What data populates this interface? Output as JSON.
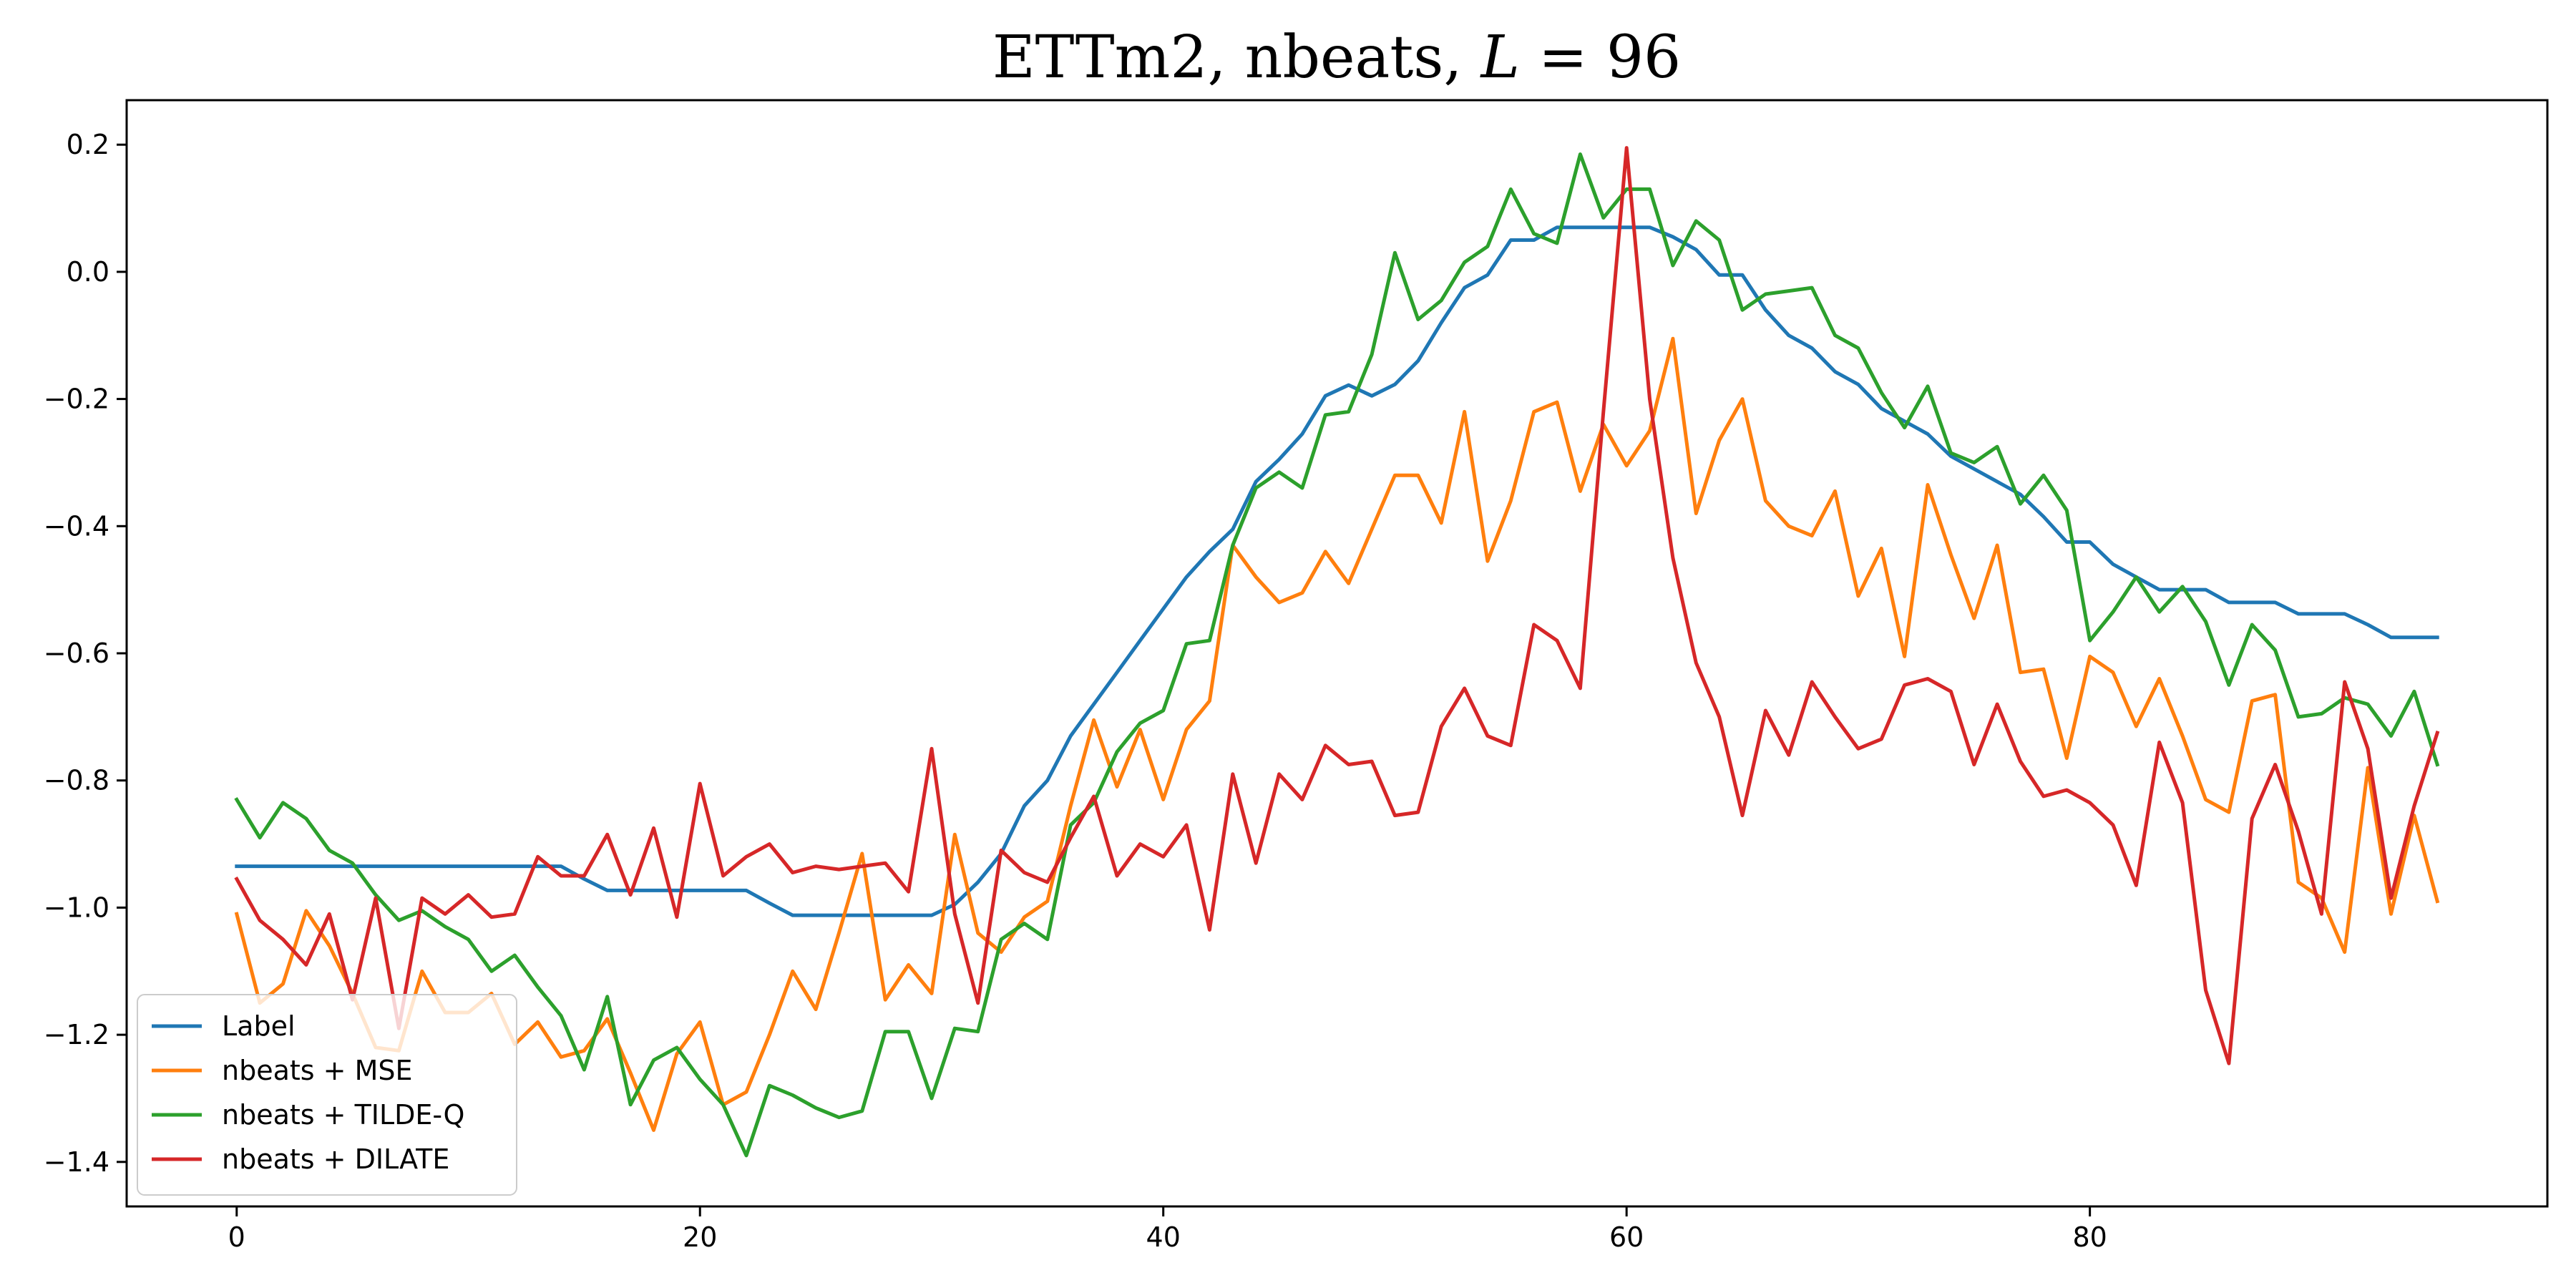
{
  "chart_data": {
    "type": "line",
    "title": "ETTm2, nbeats, L = 96",
    "title_parts": {
      "prefix": "ETTm2, nbeats, ",
      "var": "L",
      "suffix": " = 96"
    },
    "xlabel": "",
    "ylabel": "",
    "xlim": [
      -4.75,
      99.75
    ],
    "ylim": [
      -1.47,
      0.27
    ],
    "xticks": [
      0,
      20,
      40,
      60,
      80
    ],
    "xtick_labels": [
      "0",
      "20",
      "40",
      "60",
      "80"
    ],
    "yticks": [
      -1.4,
      -1.2,
      -1.0,
      -0.8,
      -0.6,
      -0.4,
      -0.2,
      0.0,
      0.2
    ],
    "ytick_labels": [
      "−1.4",
      "−1.2",
      "−1.0",
      "−0.8",
      "−0.6",
      "−0.4",
      "−0.2",
      "0.0",
      "0.2"
    ],
    "grid": false,
    "legend_position": "lower-left",
    "x_start": 0,
    "series": [
      {
        "name": "Label",
        "color": "#1f77b4",
        "values": [
          -0.935,
          -0.935,
          -0.935,
          -0.935,
          -0.935,
          -0.935,
          -0.935,
          -0.935,
          -0.935,
          -0.935,
          -0.935,
          -0.935,
          -0.935,
          -0.935,
          -0.935,
          -0.955,
          -0.973,
          -0.973,
          -0.973,
          -0.973,
          -0.973,
          -0.973,
          -0.973,
          -0.993,
          -1.012,
          -1.012,
          -1.012,
          -1.012,
          -1.012,
          -1.012,
          -1.012,
          -0.995,
          -0.96,
          -0.915,
          -0.84,
          -0.8,
          -0.73,
          -0.68,
          -0.63,
          -0.58,
          -0.53,
          -0.48,
          -0.44,
          -0.405,
          -0.33,
          -0.295,
          -0.255,
          -0.195,
          -0.178,
          -0.195,
          -0.177,
          -0.14,
          -0.08,
          -0.025,
          -0.005,
          0.05,
          0.05,
          0.07,
          0.07,
          0.07,
          0.07,
          0.07,
          0.055,
          0.035,
          -0.005,
          -0.005,
          -0.06,
          -0.1,
          -0.12,
          -0.157,
          -0.177,
          -0.215,
          -0.235,
          -0.255,
          -0.29,
          -0.31,
          -0.33,
          -0.35,
          -0.385,
          -0.425,
          -0.425,
          -0.46,
          -0.48,
          -0.5,
          -0.5,
          -0.5,
          -0.52,
          -0.52,
          -0.52,
          -0.538,
          -0.538,
          -0.538,
          -0.555,
          -0.575,
          -0.575,
          -0.575
        ]
      },
      {
        "name": "nbeats + MSE",
        "color": "#ff7f0e",
        "values": [
          -1.01,
          -1.15,
          -1.12,
          -1.005,
          -1.06,
          -1.135,
          -1.22,
          -1.225,
          -1.1,
          -1.165,
          -1.165,
          -1.135,
          -1.215,
          -1.18,
          -1.235,
          -1.225,
          -1.175,
          -1.26,
          -1.35,
          -1.23,
          -1.18,
          -1.31,
          -1.29,
          -1.2,
          -1.1,
          -1.16,
          -1.04,
          -0.915,
          -1.145,
          -1.09,
          -1.135,
          -0.885,
          -1.04,
          -1.07,
          -1.015,
          -0.99,
          -0.84,
          -0.705,
          -0.81,
          -0.72,
          -0.83,
          -0.72,
          -0.675,
          -0.43,
          -0.48,
          -0.52,
          -0.505,
          -0.44,
          -0.49,
          -0.405,
          -0.32,
          -0.32,
          -0.395,
          -0.22,
          -0.455,
          -0.36,
          -0.22,
          -0.205,
          -0.345,
          -0.24,
          -0.305,
          -0.25,
          -0.105,
          -0.38,
          -0.265,
          -0.2,
          -0.36,
          -0.4,
          -0.415,
          -0.345,
          -0.51,
          -0.435,
          -0.605,
          -0.335,
          -0.445,
          -0.545,
          -0.43,
          -0.63,
          -0.625,
          -0.765,
          -0.605,
          -0.63,
          -0.715,
          -0.64,
          -0.73,
          -0.83,
          -0.85,
          -0.675,
          -0.665,
          -0.96,
          -0.985,
          -1.07,
          -0.78,
          -1.01,
          -0.855,
          -0.99
        ]
      },
      {
        "name": "nbeats + TILDE-Q",
        "color": "#2ca02c",
        "values": [
          -0.83,
          -0.89,
          -0.835,
          -0.86,
          -0.91,
          -0.93,
          -0.98,
          -1.02,
          -1.005,
          -1.03,
          -1.05,
          -1.1,
          -1.075,
          -1.125,
          -1.17,
          -1.255,
          -1.14,
          -1.31,
          -1.24,
          -1.22,
          -1.27,
          -1.31,
          -1.39,
          -1.28,
          -1.295,
          -1.315,
          -1.33,
          -1.32,
          -1.195,
          -1.195,
          -1.3,
          -1.19,
          -1.195,
          -1.05,
          -1.025,
          -1.05,
          -0.87,
          -0.835,
          -0.755,
          -0.71,
          -0.69,
          -0.585,
          -0.58,
          -0.43,
          -0.34,
          -0.315,
          -0.34,
          -0.225,
          -0.22,
          -0.13,
          0.03,
          -0.075,
          -0.045,
          0.015,
          0.04,
          0.13,
          0.06,
          0.045,
          0.185,
          0.085,
          0.13,
          0.13,
          0.01,
          0.08,
          0.05,
          -0.06,
          -0.035,
          -0.03,
          -0.025,
          -0.1,
          -0.12,
          -0.19,
          -0.245,
          -0.18,
          -0.285,
          -0.3,
          -0.275,
          -0.365,
          -0.32,
          -0.375,
          -0.58,
          -0.535,
          -0.48,
          -0.535,
          -0.495,
          -0.55,
          -0.65,
          -0.555,
          -0.595,
          -0.7,
          -0.695,
          -0.67,
          -0.68,
          -0.73,
          -0.66,
          -0.775
        ]
      },
      {
        "name": "nbeats + DILATE",
        "color": "#d62728",
        "values": [
          -0.955,
          -1.02,
          -1.05,
          -1.09,
          -1.01,
          -1.145,
          -0.985,
          -1.19,
          -0.985,
          -1.01,
          -0.98,
          -1.015,
          -1.01,
          -0.92,
          -0.95,
          -0.95,
          -0.885,
          -0.98,
          -0.875,
          -1.015,
          -0.805,
          -0.95,
          -0.92,
          -0.9,
          -0.945,
          -0.935,
          -0.94,
          -0.935,
          -0.93,
          -0.975,
          -0.75,
          -1.01,
          -1.15,
          -0.91,
          -0.945,
          -0.96,
          -0.89,
          -0.825,
          -0.95,
          -0.9,
          -0.92,
          -0.87,
          -1.035,
          -0.79,
          -0.93,
          -0.79,
          -0.83,
          -0.745,
          -0.775,
          -0.77,
          -0.855,
          -0.85,
          -0.715,
          -0.655,
          -0.73,
          -0.745,
          -0.555,
          -0.58,
          -0.655,
          -0.22,
          0.195,
          -0.2,
          -0.45,
          -0.615,
          -0.7,
          -0.855,
          -0.69,
          -0.76,
          -0.645,
          -0.7,
          -0.75,
          -0.735,
          -0.65,
          -0.64,
          -0.66,
          -0.775,
          -0.68,
          -0.77,
          -0.825,
          -0.815,
          -0.835,
          -0.87,
          -0.965,
          -0.74,
          -0.835,
          -1.13,
          -1.245,
          -0.86,
          -0.775,
          -0.88,
          -1.01,
          -0.645,
          -0.75,
          -0.985,
          -0.84,
          -0.725
        ]
      }
    ]
  }
}
